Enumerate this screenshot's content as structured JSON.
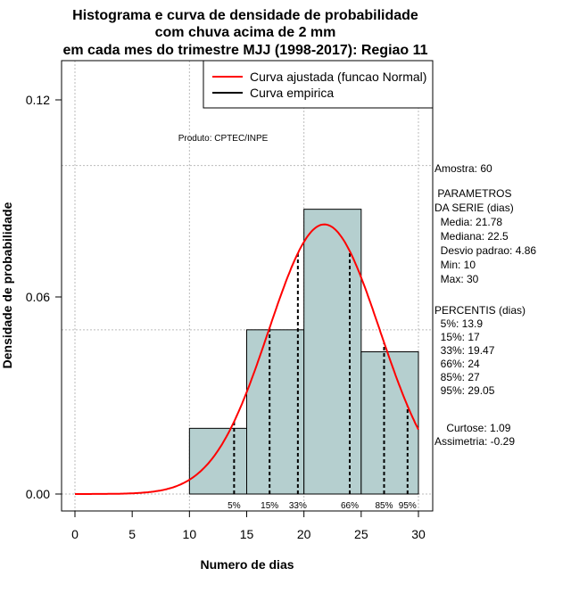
{
  "chart_data": {
    "type": "bar",
    "title_lines": [
      "Histograma e curva de densidade de probabilidade",
      "com chuva acima de 2 mm",
      "em cada mes do trimestre MJJ (1998-2017): Regiao 11"
    ],
    "xlabel": "Numero de dias",
    "ylabel": "Densidade de probabilidade",
    "xlim": [
      -1.2,
      31.2
    ],
    "ylim": [
      -0.0052,
      0.1205
    ],
    "xticks": [
      0,
      5,
      10,
      15,
      20,
      25,
      30
    ],
    "yticks": [
      0.0,
      0.06,
      0.12
    ],
    "ytick_labels": [
      "0.00",
      "0.06",
      "0.12"
    ],
    "grid_x": [
      0,
      10,
      20,
      30
    ],
    "grid_y": [
      0,
      0.05,
      0.1
    ],
    "bins": [
      {
        "from": 10,
        "to": 15,
        "density": 0.02
      },
      {
        "from": 15,
        "to": 20,
        "density": 0.05
      },
      {
        "from": 20,
        "to": 25,
        "density": 0.0867
      },
      {
        "from": 25,
        "to": 30,
        "density": 0.0433
      }
    ],
    "bar_color": "#b5cfcf",
    "normal_curve": {
      "mean": 21.78,
      "sd": 4.86,
      "from": 0,
      "to": 30,
      "color": "#ff0000"
    },
    "percentile_lines": [
      {
        "label": "5%",
        "value": 13.9
      },
      {
        "label": "15%",
        "value": 17
      },
      {
        "label": "33%",
        "value": 19.47
      },
      {
        "label": "66%",
        "value": 24
      },
      {
        "label": "85%",
        "value": 27
      },
      {
        "label": "95%",
        "value": 29.05
      }
    ],
    "legend": [
      {
        "label": "Curva ajustada (funcao Normal)",
        "color": "#ff0000"
      },
      {
        "label": "Curva empirica",
        "color": "#000000"
      }
    ],
    "legend_position": "top-right",
    "annotation": "Produto: CPTEC/INPE"
  },
  "side_panel": {
    "lines": [
      "Amostra: 60",
      " PARAMETROS",
      "DA SERIE (dias)",
      "  Media: 21.78",
      "  Mediana: 22.5",
      "  Desvio padrao: 4.86",
      "  Min: 10",
      "  Max: 30",
      "PERCENTIS (dias)",
      "  5%: 13.9",
      "  15%: 17",
      "  33%: 19.47",
      "  66%: 24",
      "  85%: 27",
      "  95%: 29.05",
      "    Curtose: 1.09",
      "Assimetria: -0.29"
    ]
  }
}
